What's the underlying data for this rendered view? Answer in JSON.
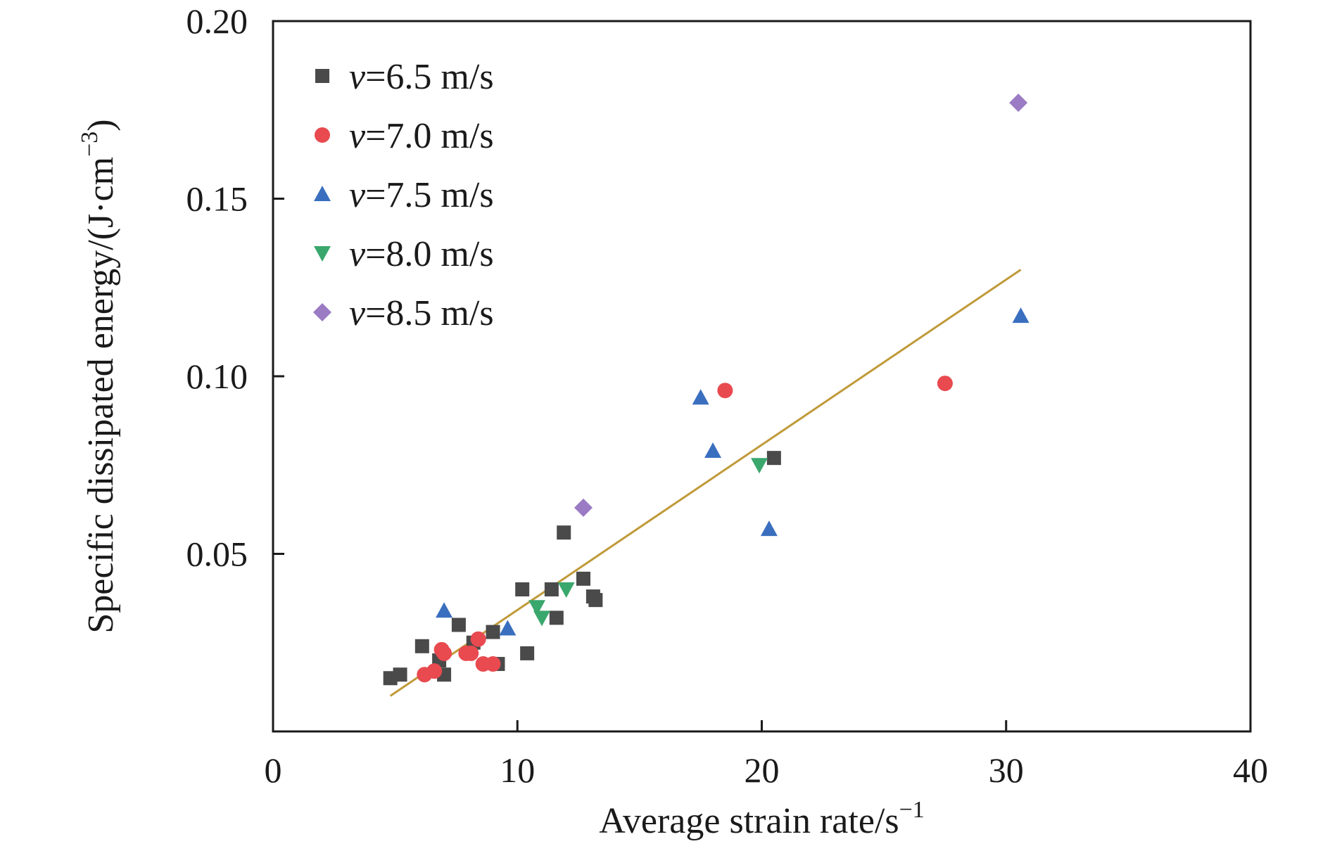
{
  "chart_data": {
    "type": "scatter",
    "xlabel": "Average strain rate/s",
    "xlabel_sup": "−1",
    "ylabel": "Specific dissipated energy/(J·cm",
    "ylabel_sup": "−3",
    "ylabel_suffix": ")",
    "xlim": [
      0,
      40
    ],
    "ylim": [
      0,
      0.2
    ],
    "x_ticks": [
      0,
      10,
      20,
      30,
      40
    ],
    "x_tick_labels": [
      "0",
      "10",
      "20",
      "30",
      "40"
    ],
    "y_ticks": [
      0.05,
      0.1,
      0.15,
      0.2
    ],
    "y_tick_labels": [
      "0.05",
      "0.10",
      "0.15",
      "0.20"
    ],
    "grid": false,
    "legend_position": "top-left",
    "series": [
      {
        "name": "=6.5 m/s",
        "name_prefix": "v",
        "marker": "square",
        "color": "#4a4a4a",
        "points": [
          [
            4.8,
            0.015
          ],
          [
            5.2,
            0.016
          ],
          [
            6.1,
            0.024
          ],
          [
            6.8,
            0.02
          ],
          [
            7.0,
            0.016
          ],
          [
            7.6,
            0.03
          ],
          [
            8.2,
            0.025
          ],
          [
            9.0,
            0.028
          ],
          [
            9.2,
            0.019
          ],
          [
            10.2,
            0.04
          ],
          [
            10.4,
            0.022
          ],
          [
            11.4,
            0.04
          ],
          [
            11.6,
            0.032
          ],
          [
            11.9,
            0.056
          ],
          [
            12.7,
            0.043
          ],
          [
            13.1,
            0.038
          ],
          [
            13.2,
            0.037
          ],
          [
            20.5,
            0.077
          ]
        ]
      },
      {
        "name": "=7.0 m/s",
        "name_prefix": "v",
        "marker": "circle",
        "color": "#e84a4f",
        "points": [
          [
            6.2,
            0.016
          ],
          [
            6.6,
            0.017
          ],
          [
            6.9,
            0.023
          ],
          [
            7.0,
            0.022
          ],
          [
            7.9,
            0.022
          ],
          [
            8.1,
            0.022
          ],
          [
            8.4,
            0.026
          ],
          [
            8.6,
            0.019
          ],
          [
            9.0,
            0.019
          ],
          [
            18.5,
            0.096
          ],
          [
            27.5,
            0.098
          ]
        ]
      },
      {
        "name": "=7.5 m/s",
        "name_prefix": "v",
        "marker": "triangle-up",
        "color": "#3a6fbf",
        "points": [
          [
            7.0,
            0.034
          ],
          [
            9.6,
            0.029
          ],
          [
            17.5,
            0.094
          ],
          [
            18.0,
            0.079
          ],
          [
            20.3,
            0.057
          ],
          [
            30.6,
            0.117
          ]
        ]
      },
      {
        "name": "=8.0 m/s",
        "name_prefix": "v",
        "marker": "triangle-down",
        "color": "#3aa76d",
        "points": [
          [
            10.8,
            0.035
          ],
          [
            11.0,
            0.032
          ],
          [
            12.0,
            0.04
          ],
          [
            19.9,
            0.075
          ]
        ]
      },
      {
        "name": "=8.5 m/s",
        "name_prefix": "v",
        "marker": "diamond",
        "color": "#9b7bc4",
        "points": [
          [
            12.7,
            0.063
          ],
          [
            30.5,
            0.177
          ]
        ]
      }
    ],
    "fit_line": {
      "color": "#c09a3a",
      "x": [
        4.8,
        30.6
      ],
      "y": [
        0.01,
        0.13
      ]
    }
  }
}
